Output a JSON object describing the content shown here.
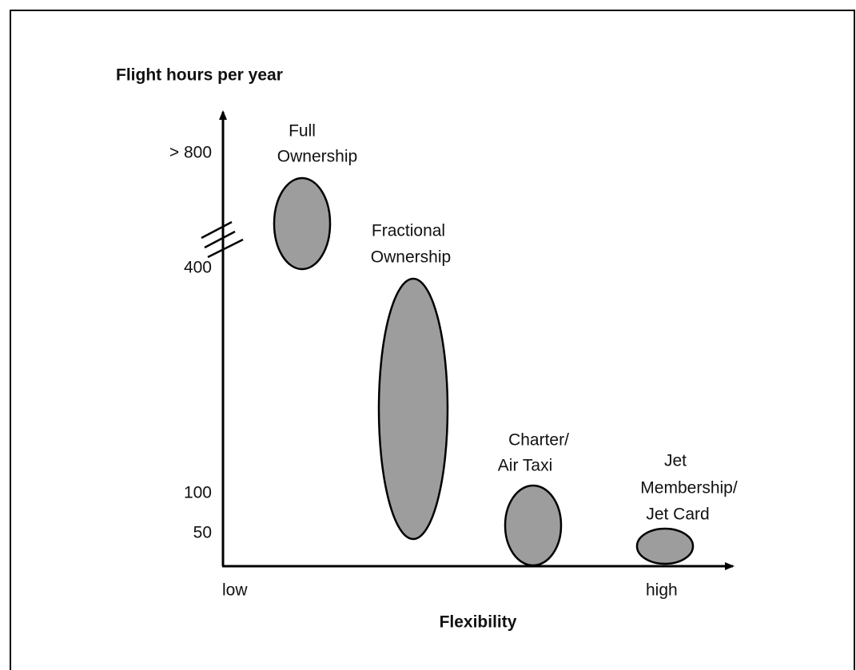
{
  "y_axis": {
    "label": "Flight hours per year",
    "ticks": [
      "> 800",
      "400",
      "100",
      "50"
    ]
  },
  "x_axis": {
    "label": "Flexibility",
    "ticks": [
      "low",
      "high"
    ]
  },
  "nodes": [
    {
      "label": [
        "Full",
        "Ownership"
      ]
    },
    {
      "label": [
        "Fractional",
        "Ownership"
      ]
    },
    {
      "label": [
        "Charter/",
        "Air Taxi"
      ]
    },
    {
      "label": [
        "Jet",
        "Membership/",
        "Jet Card"
      ]
    }
  ]
}
